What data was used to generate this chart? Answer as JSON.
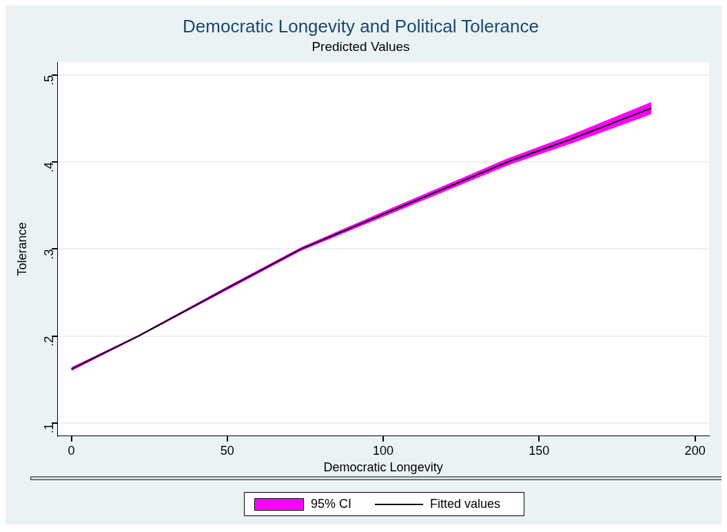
{
  "chart_data": {
    "type": "line",
    "title": "Democratic Longevity and Political Tolerance",
    "subtitle": "Predicted Values",
    "xlabel": "Democratic Longevity",
    "ylabel": "Tolerance",
    "x": [
      0,
      21.5,
      50,
      73.6,
      100,
      139.8,
      160,
      186
    ],
    "series": [
      {
        "name": "Fitted values",
        "type": "line",
        "color": "#000000",
        "values": [
          0.162,
          0.2,
          0.255,
          0.3,
          0.34,
          0.4,
          0.426,
          0.462
        ],
        "lower": [
          0.16,
          0.199,
          0.253,
          0.298,
          0.337,
          0.396,
          0.421,
          0.455
        ],
        "upper": [
          0.164,
          0.201,
          0.257,
          0.302,
          0.343,
          0.404,
          0.431,
          0.469
        ]
      }
    ],
    "annotations": [
      "95% CI"
    ],
    "xlim": [
      -4.5,
      204.5
    ],
    "xticks": [
      0,
      50,
      100,
      150,
      200
    ],
    "ylim": [
      0.085,
      0.515
    ],
    "yticks": [
      {
        "value": 0.1,
        "label": ".1"
      },
      {
        "value": 0.2,
        "label": ".2"
      },
      {
        "value": 0.3,
        "label": ".3"
      },
      {
        "value": 0.4,
        "label": ".4"
      },
      {
        "value": 0.5,
        "label": ".5"
      }
    ],
    "grid": "y",
    "legend": "bottom",
    "marker": "none",
    "line_style": "solid"
  }
}
